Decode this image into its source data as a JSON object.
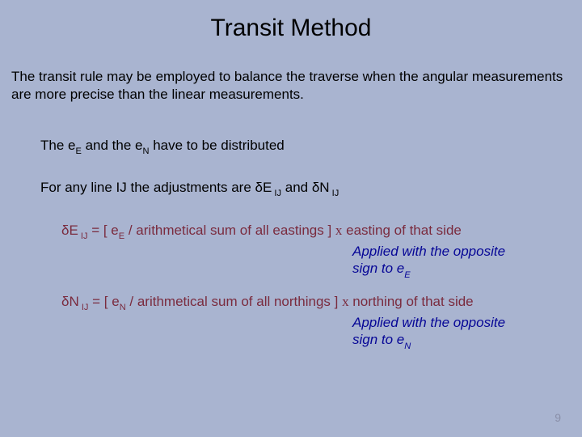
{
  "colors": {
    "background": "#a9b4d0",
    "text": "#000000",
    "formula": "#7a2b3e",
    "applied": "#060696",
    "pagenum": "#8a8fa8"
  },
  "fonts": {
    "title_size": 30,
    "body_size": 17,
    "formula_size": 17,
    "applied_size": 17,
    "pagenum_size": 14
  },
  "title": "Transit Method",
  "intro": "The transit rule may be employed to balance the traverse when the angular measurements are more precise than the linear measurements.",
  "dist": {
    "pre1": "The e",
    "sub1": "E",
    "mid": " and the e",
    "sub2": "N",
    "post": " have to be distributed"
  },
  "adjust": {
    "pre": "For any line IJ the adjustments are ",
    "d1": "δ",
    "d1a": "E",
    "d1sub": " IJ",
    "mid": " and ",
    "d2": "δ",
    "d2a": "N",
    "d2sub": " IJ"
  },
  "de": {
    "d": "δ",
    "da": "E",
    "dsub": " IJ",
    "eq": " = [ e",
    "esub": "E",
    "mid": " / arithmetical sum of all eastings ]  ",
    "x": "x",
    "tail": " easting of that side"
  },
  "dn": {
    "d": "δ",
    "da": "N",
    "dsub": " IJ",
    "eq": " = [ e",
    "esub": "N",
    "mid": " / arithmetical sum of all northings ]  ",
    "x": "x",
    "tail": " northing of that side"
  },
  "applied_de": {
    "l1": "Applied with the opposite",
    "l2a": "sign to e",
    "l2sub": "E"
  },
  "applied_dn": {
    "l1": "Applied with the opposite",
    "l2a": "sign to e",
    "l2sub": "N"
  },
  "page": "9"
}
